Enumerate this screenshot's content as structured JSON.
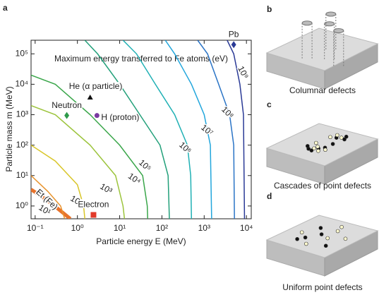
{
  "chart_data": {
    "type": "contour",
    "panel_label": "a",
    "annotation": "Maximum energy transferred to Fe atoms (eV)",
    "xlabel": "Particle energy E (MeV)",
    "ylabel": "Particle mass m (MeV)",
    "xscale": "log",
    "yscale": "log",
    "xlim": [
      0.08,
      13000
    ],
    "ylim": [
      0.38,
      280000
    ],
    "xticks": [
      {
        "value": 0.1,
        "label": "10⁻¹"
      },
      {
        "value": 1,
        "label": "10⁰"
      },
      {
        "value": 10,
        "label": "10¹"
      },
      {
        "value": 100,
        "label": "10²"
      },
      {
        "value": 1000,
        "label": "10³"
      },
      {
        "value": 10000,
        "label": "10⁴"
      }
    ],
    "yticks": [
      {
        "value": 1,
        "label": "10⁰"
      },
      {
        "value": 10,
        "label": "10¹"
      },
      {
        "value": 100,
        "label": "10²"
      },
      {
        "value": 1000,
        "label": "10³"
      },
      {
        "value": 10000,
        "label": "10⁴"
      },
      {
        "value": 100000,
        "label": "10⁵"
      }
    ],
    "series": [
      {
        "name": "Et (Fe)",
        "color": "#e8732c",
        "x": [
          0.08,
          0.2,
          0.68
        ],
        "y": [
          3.5,
          1.5,
          0.38
        ]
      },
      {
        "name": "10¹",
        "color": "#e8942e",
        "x": [
          0.08,
          0.2,
          0.4,
          0.5
        ],
        "y": [
          10,
          3,
          1,
          0.38
        ]
      },
      {
        "name": "10²",
        "color": "#d9c62a",
        "x": [
          0.08,
          0.3,
          1,
          1.4,
          1.5
        ],
        "y": [
          100,
          30,
          5,
          1,
          0.38
        ]
      },
      {
        "name": "10³",
        "color": "#9cc43c",
        "x": [
          0.08,
          0.3,
          2,
          8,
          12,
          13
        ],
        "y": [
          2000,
          1000,
          100,
          10,
          1,
          0.38
        ]
      },
      {
        "name": "10⁴",
        "color": "#3aa64a",
        "x": [
          0.08,
          0.3,
          2,
          10,
          35,
          45,
          46
        ],
        "y": [
          20000,
          10000,
          1000,
          100,
          10,
          1,
          0.38
        ]
      },
      {
        "name": "10⁵",
        "color": "#22a07a",
        "x": [
          1.5,
          3,
          10,
          30,
          90,
          140,
          150
        ],
        "y": [
          280000,
          100000,
          10000,
          1000,
          100,
          10,
          0.38
        ]
      },
      {
        "name": "10⁶",
        "color": "#1fb0b4",
        "x": [
          12,
          25,
          70,
          200,
          400,
          480,
          500
        ],
        "y": [
          280000,
          100000,
          10000,
          1000,
          100,
          10,
          0.38
        ]
      },
      {
        "name": "10⁷",
        "color": "#22a6dc",
        "x": [
          120,
          200,
          500,
          1000,
          1400,
          1500
        ],
        "y": [
          280000,
          100000,
          10000,
          1000,
          100,
          0.38
        ]
      },
      {
        "name": "10⁸",
        "color": "#2a74c6",
        "x": [
          700,
          1200,
          2200,
          4000,
          5000,
          5200
        ],
        "y": [
          280000,
          100000,
          10000,
          1000,
          100,
          0.38
        ]
      },
      {
        "name": "10⁹",
        "color": "#2a3a96",
        "x": [
          3500,
          5000,
          7000,
          8500,
          9000
        ],
        "y": [
          280000,
          100000,
          10000,
          1000,
          0.38
        ]
      }
    ],
    "points": [
      {
        "name": "Pb",
        "x": 5000,
        "y": 200000,
        "color": "#2a3a96",
        "marker": "diamond"
      },
      {
        "name": "He (α particle)",
        "x": 2,
        "y": 3700,
        "color": "#111111",
        "marker": "triangle"
      },
      {
        "name": "H (proton)",
        "x": 2.9,
        "y": 940,
        "color": "#7a3aa0",
        "marker": "circle"
      },
      {
        "name": "Neutron",
        "x": 0.56,
        "y": 940,
        "color": "#2e9a4a",
        "marker": "diamond"
      },
      {
        "name": "Electron",
        "x": 2.4,
        "y": 0.51,
        "color": "#e23a2a",
        "marker": "square"
      }
    ]
  },
  "panels": [
    {
      "label": "b",
      "caption": "Columnar defects"
    },
    {
      "label": "c",
      "caption": "Cascades of point defects"
    },
    {
      "label": "d",
      "caption": "Uniform point defects"
    }
  ]
}
